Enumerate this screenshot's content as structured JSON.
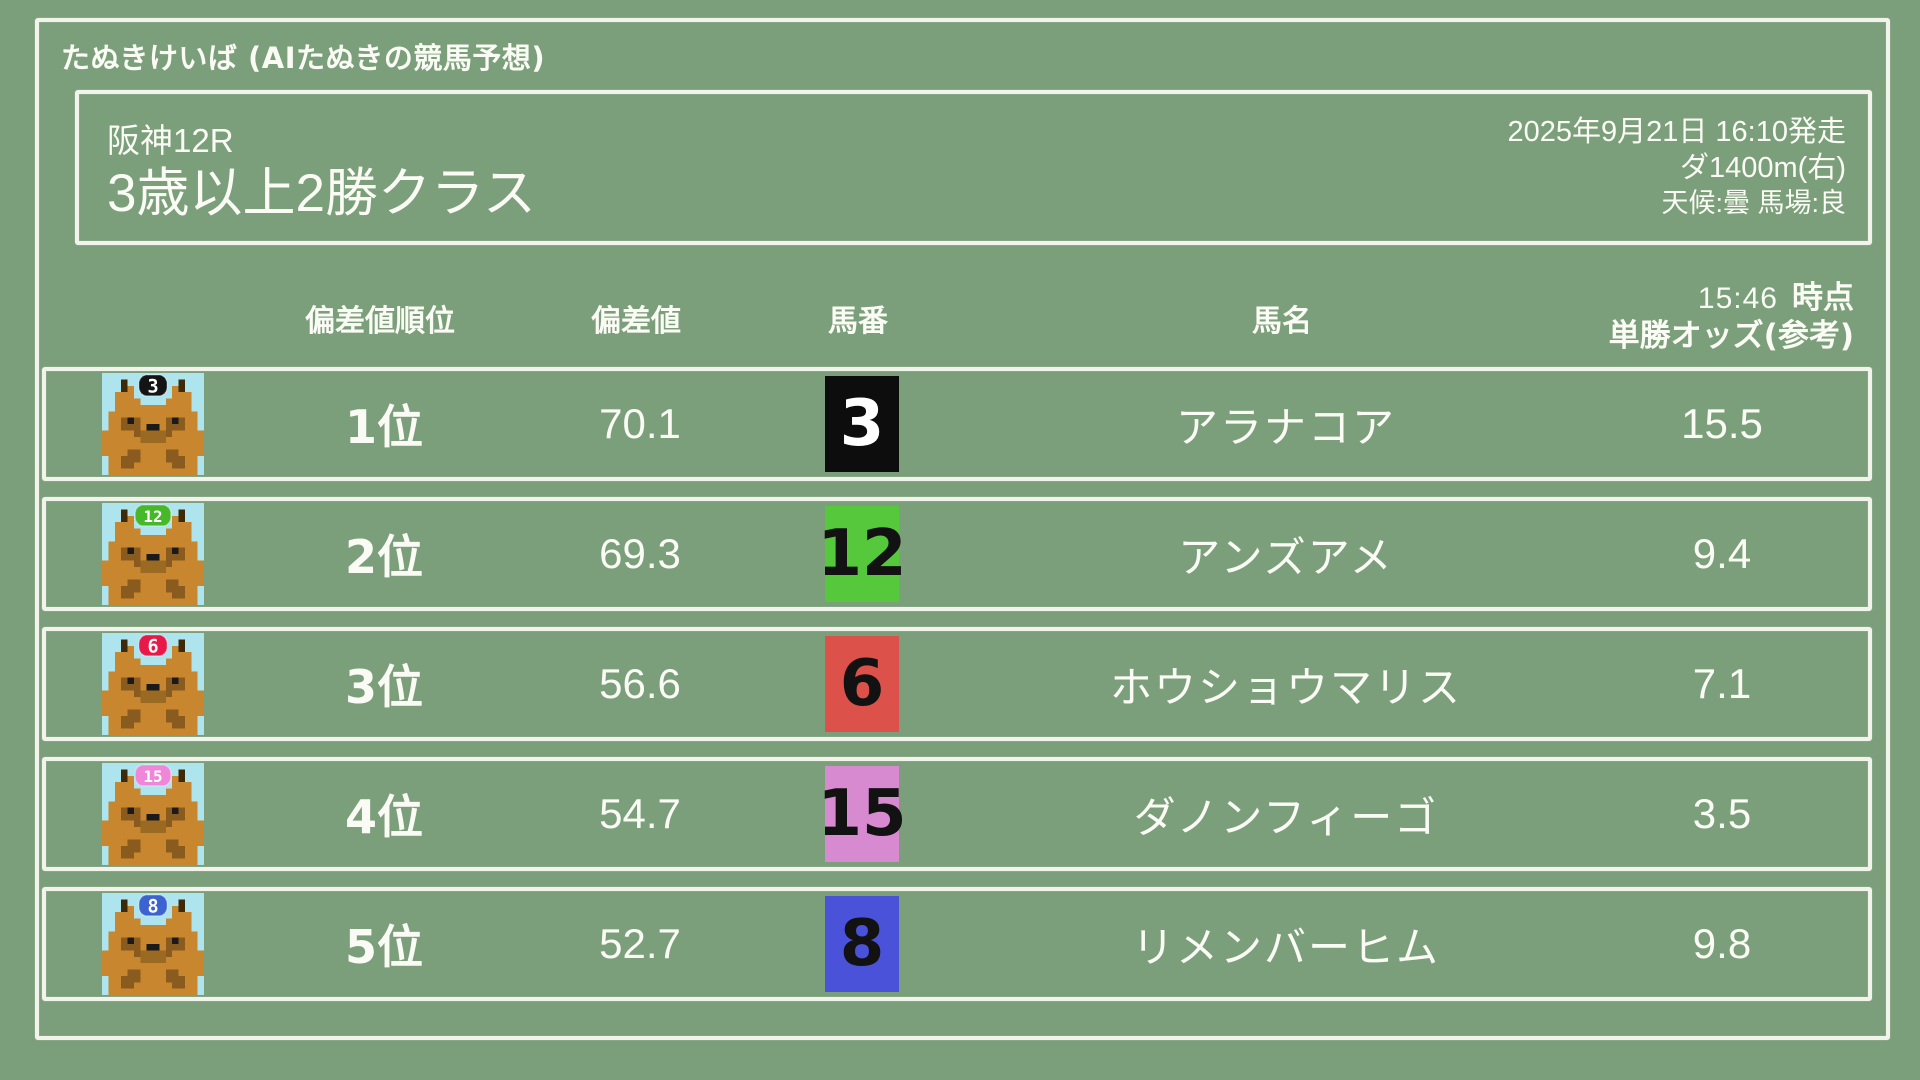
{
  "site": {
    "title": "たぬきけいば (AIたぬきの競馬予想)"
  },
  "race": {
    "course_race": "阪神12R",
    "name": "3歳以上2勝クラス",
    "start": "2025年9月21日 16:10発走",
    "distance": "ダ1400m(右)",
    "conditions": "天候:曇 馬場:良"
  },
  "table": {
    "headers": {
      "rank": "偏差値順位",
      "value": "偏差値",
      "number": "馬番",
      "name": "馬名",
      "odds_time": "15:46",
      "odds_time_suffix": "時点",
      "odds_label": "単勝オッズ(参考)"
    },
    "rows": [
      {
        "rank": "1位",
        "value": "70.1",
        "number": "3",
        "name": "アラナコア",
        "odds": "15.5",
        "waku_color": "#0d0d0d",
        "number_text_color": "#ffffff",
        "cap_color": "#141414"
      },
      {
        "rank": "2位",
        "value": "69.3",
        "number": "12",
        "name": "アンズアメ",
        "odds": "9.4",
        "waku_color": "#55c83b",
        "number_text_color": "#121212",
        "cap_color": "#46b82a"
      },
      {
        "rank": "3位",
        "value": "56.6",
        "number": "6",
        "name": "ホウショウマリス",
        "odds": "7.1",
        "waku_color": "#dc524b",
        "number_text_color": "#121212",
        "cap_color": "#e81948"
      },
      {
        "rank": "4位",
        "value": "54.7",
        "number": "15",
        "name": "ダノンフィーゴ",
        "odds": "3.5",
        "waku_color": "#d78ad0",
        "number_text_color": "#121212",
        "cap_color": "#ef86d7"
      },
      {
        "rank": "5位",
        "value": "52.7",
        "number": "8",
        "name": "リメンバーヒム",
        "odds": "9.8",
        "waku_color": "#4a52da",
        "number_text_color": "#121212",
        "cap_color": "#3c63cf"
      }
    ]
  },
  "theme": {
    "background": "#7c9f7b",
    "border": "#f2f4ec",
    "text": "#fbfbf5",
    "avatar_background": "#aee4ee"
  }
}
